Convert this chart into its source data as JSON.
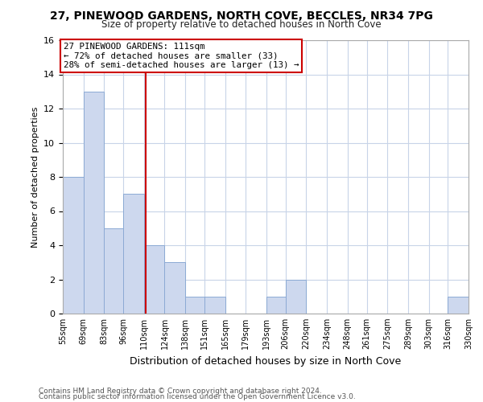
{
  "title": "27, PINEWOOD GARDENS, NORTH COVE, BECCLES, NR34 7PG",
  "subtitle": "Size of property relative to detached houses in North Cove",
  "xlabel": "Distribution of detached houses by size in North Cove",
  "ylabel": "Number of detached properties",
  "bin_edges": [
    55,
    69,
    83,
    96,
    110,
    124,
    138,
    151,
    165,
    179,
    193,
    206,
    220,
    234,
    248,
    261,
    275,
    289,
    303,
    316,
    330
  ],
  "bin_labels": [
    "55sqm",
    "69sqm",
    "83sqm",
    "96sqm",
    "110sqm",
    "124sqm",
    "138sqm",
    "151sqm",
    "165sqm",
    "179sqm",
    "193sqm",
    "206sqm",
    "220sqm",
    "234sqm",
    "248sqm",
    "261sqm",
    "275sqm",
    "289sqm",
    "303sqm",
    "316sqm",
    "330sqm"
  ],
  "counts": [
    8,
    13,
    5,
    7,
    4,
    3,
    1,
    1,
    0,
    0,
    1,
    2,
    0,
    0,
    0,
    0,
    0,
    0,
    0,
    1
  ],
  "bar_color": "#cdd8ee",
  "bar_edgecolor": "#8caad4",
  "property_value": 111,
  "vline_color": "#cc0000",
  "annotation_line1": "27 PINEWOOD GARDENS: 111sqm",
  "annotation_line2": "← 72% of detached houses are smaller (33)",
  "annotation_line3": "28% of semi-detached houses are larger (13) →",
  "annotation_box_edgecolor": "#cc0000",
  "ylim": [
    0,
    16
  ],
  "yticks": [
    0,
    2,
    4,
    6,
    8,
    10,
    12,
    14,
    16
  ],
  "background_color": "#ffffff",
  "grid_color": "#c8d4e8",
  "footer1": "Contains HM Land Registry data © Crown copyright and database right 2024.",
  "footer2": "Contains public sector information licensed under the Open Government Licence v3.0."
}
